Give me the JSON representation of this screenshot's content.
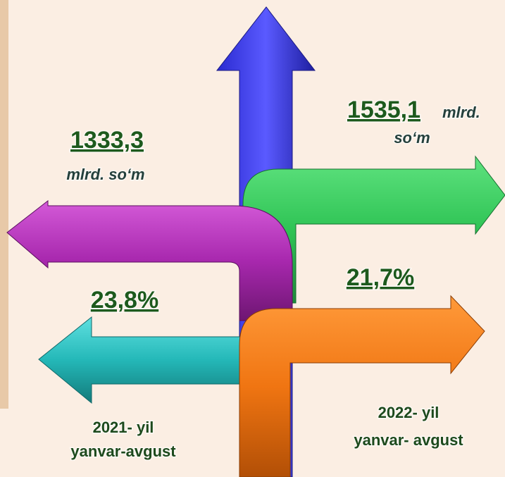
{
  "left": {
    "amount": "1333,3",
    "unit": "mlrd. so‘m",
    "growth": "23,8%",
    "period_year": "2021- yil",
    "period_months": "yanvar-avgust"
  },
  "right": {
    "amount": "1535,1",
    "unit_line1": "mlrd.",
    "unit_line2": "so‘m",
    "growth": "21,7%",
    "period_year": "2022- yil",
    "period_months": "yanvar- avgust"
  }
}
